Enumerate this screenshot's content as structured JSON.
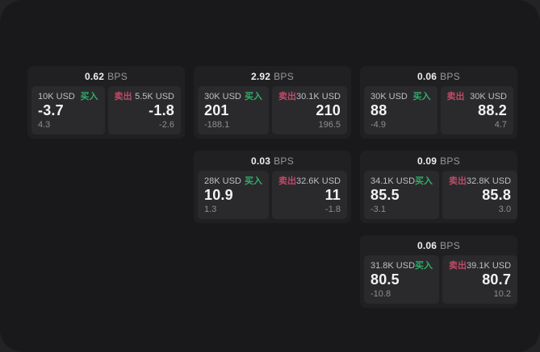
{
  "labels": {
    "bps_unit": "BPS",
    "buy": "买入",
    "sell": "卖出"
  },
  "colors": {
    "buy_green": "#2fae68",
    "sell_red": "#bf4a66",
    "panel_bg": "#19191b",
    "card_bg": "#202023",
    "tile_bg": "#2a2a2d"
  },
  "cards": [
    {
      "row": 1,
      "col": 1,
      "bps": "0.62",
      "buy": {
        "amount": "10K USD",
        "value": "-3.7",
        "sub": "4.3"
      },
      "sell": {
        "amount": "5.5K USD",
        "value": "-1.8",
        "sub": "-2.6"
      }
    },
    {
      "row": 1,
      "col": 2,
      "bps": "2.92",
      "buy": {
        "amount": "30K USD",
        "value": "201",
        "sub": "-188.1"
      },
      "sell": {
        "amount": "30.1K USD",
        "value": "210",
        "sub": "196.5"
      }
    },
    {
      "row": 1,
      "col": 3,
      "bps": "0.06",
      "buy": {
        "amount": "30K USD",
        "value": "88",
        "sub": "-4.9"
      },
      "sell": {
        "amount": "30K USD",
        "value": "88.2",
        "sub": "4.7"
      }
    },
    {
      "row": 2,
      "col": 2,
      "bps": "0.03",
      "buy": {
        "amount": "28K USD",
        "value": "10.9",
        "sub": "1.3"
      },
      "sell": {
        "amount": "32.6K USD",
        "value": "11",
        "sub": "-1.8"
      }
    },
    {
      "row": 2,
      "col": 3,
      "bps": "0.09",
      "buy": {
        "amount": "34.1K USD",
        "value": "85.5",
        "sub": "-3.1"
      },
      "sell": {
        "amount": "32.8K USD",
        "value": "85.8",
        "sub": "3.0"
      }
    },
    {
      "row": 3,
      "col": 3,
      "bps": "0.06",
      "buy": {
        "amount": "31.8K USD",
        "value": "80.5",
        "sub": "-10.8"
      },
      "sell": {
        "amount": "39.1K USD",
        "value": "80.7",
        "sub": "10.2"
      }
    }
  ]
}
